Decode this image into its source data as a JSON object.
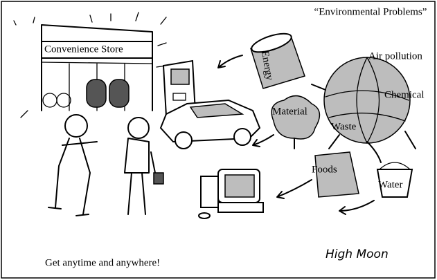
{
  "illustration": {
    "store_label": "Convenience Store",
    "title": "“Environmental Problems”",
    "labels": {
      "energy": "Energy",
      "air": "Air pollution",
      "chemical": "Chemical",
      "material": "Material",
      "waste": "Waste",
      "foods": "Foods",
      "water": "Water"
    },
    "caption": "Get anytime and anywhere!",
    "signature": "High Moon"
  }
}
